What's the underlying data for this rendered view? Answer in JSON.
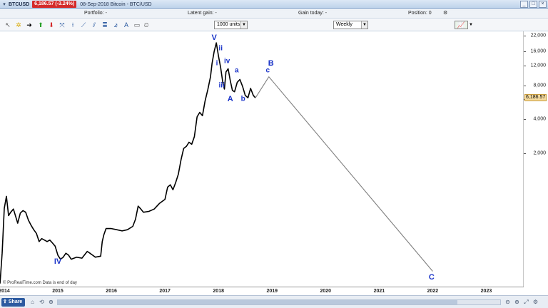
{
  "title_bar": {
    "symbol": "BTCUSD",
    "last_price": "6,186.57 (-3.24%)",
    "description": "08-Sep-2018 Bitcoin - BTC/USD",
    "window_buttons": [
      "_",
      "□",
      "×"
    ]
  },
  "info_bar": {
    "portfolio": "Portfolio: -",
    "latent_gain": "Latent gain: -",
    "gain_today": "Gain today: -",
    "position": "Position: 0"
  },
  "toolbar": {
    "quantity_value": "1000 units",
    "timeframe_value": "Weekly",
    "tools": [
      "cursor",
      "crosshair",
      "arrow",
      "buy",
      "sell",
      "cross",
      "trendline",
      "channel",
      "fibonacci",
      "text",
      "rectangle",
      "alert",
      "zoom"
    ]
  },
  "colors": {
    "price_line": "#000000",
    "projection_line": "#808080",
    "wave_label": "#1a33c8",
    "last_price_bg": "#d42a2a",
    "price_label_bg": "#f6dca0"
  },
  "chart_data": {
    "type": "line",
    "scale": "log",
    "xlabel": "",
    "ylabel": "",
    "x_ticks": [
      "2014",
      "2015",
      "2016",
      "2017",
      "2018",
      "2019",
      "2020",
      "2021",
      "2022",
      "2023"
    ],
    "y_ticks": [
      "22,000",
      "16,000",
      "12,000",
      "8,000",
      "6,000",
      "4,000",
      "2,000"
    ],
    "y_tick_values": [
      22000,
      16000,
      12000,
      8000,
      6000,
      4000,
      2000
    ],
    "ylim": [
      150,
      22000
    ],
    "xlim": [
      2013.92,
      2023.7
    ],
    "last_price_label": "6,186.57",
    "last_price_value": 6186.57,
    "series": [
      {
        "x": [
          2013.92,
          2013.96,
          2014.0,
          2014.04,
          2014.08,
          2014.12,
          2014.17,
          2014.25,
          2014.3,
          2014.35,
          2014.4,
          2014.45,
          2014.5,
          2014.55,
          2014.6,
          2014.65,
          2014.7,
          2014.75,
          2014.8,
          2014.85,
          2014.9,
          2014.95,
          2015.0,
          2015.05,
          2015.1,
          2015.15,
          2015.2,
          2015.25,
          2015.35,
          2015.45,
          2015.55,
          2015.6,
          2015.65,
          2015.7,
          2015.8,
          2015.83,
          2015.86,
          2015.9,
          2016.0,
          2016.1,
          2016.2,
          2016.3,
          2016.4,
          2016.45,
          2016.5,
          2016.55,
          2016.6,
          2016.7,
          2016.8,
          2016.9,
          2017.0,
          2017.05,
          2017.1,
          2017.15,
          2017.2,
          2017.25,
          2017.3,
          2017.35,
          2017.4,
          2017.45,
          2017.5,
          2017.55,
          2017.6,
          2017.65,
          2017.7,
          2017.75,
          2017.8,
          2017.85,
          2017.88,
          2017.92,
          2017.96,
          2018.0,
          2018.04,
          2018.08,
          2018.11,
          2018.14,
          2018.18,
          2018.22,
          2018.26,
          2018.3,
          2018.35,
          2018.4,
          2018.45,
          2018.5,
          2018.55,
          2018.6,
          2018.65,
          2018.69
        ],
        "values": [
          140,
          260,
          650,
          830,
          560,
          600,
          640,
          480,
          590,
          620,
          600,
          510,
          460,
          420,
          390,
          330,
          350,
          340,
          330,
          340,
          320,
          300,
          250,
          230,
          240,
          260,
          250,
          230,
          240,
          235,
          270,
          260,
          250,
          240,
          245,
          330,
          380,
          430,
          430,
          420,
          410,
          420,
          450,
          520,
          680,
          640,
          600,
          610,
          640,
          720,
          780,
          1000,
          1050,
          950,
          1100,
          1300,
          1750,
          2200,
          2300,
          2500,
          2400,
          2800,
          4200,
          4600,
          4300,
          5800,
          7300,
          9500,
          12500,
          16000,
          19000,
          14500,
          11500,
          8500,
          7400,
          10500,
          11200,
          8800,
          7200,
          7000,
          8500,
          9000,
          7800,
          6500,
          6200,
          7500,
          6500,
          6186
        ]
      },
      {
        "x": [
          2018.69,
          2018.94,
          2022.0
        ],
        "values": [
          6186,
          9500,
          180
        ]
      }
    ],
    "annotations": [
      {
        "text": "IV",
        "x": 2015.0,
        "y": 220
      },
      {
        "text": "V",
        "x": 2017.92,
        "y": 21000
      },
      {
        "text": "ii",
        "x": 2018.04,
        "y": 17000
      },
      {
        "text": "i",
        "x": 2017.97,
        "y": 12500
      },
      {
        "text": "iv",
        "x": 2018.16,
        "y": 13000
      },
      {
        "text": "iii",
        "x": 2018.06,
        "y": 7900
      },
      {
        "text": "a",
        "x": 2018.34,
        "y": 10800
      },
      {
        "text": "A",
        "x": 2018.22,
        "y": 6000
      },
      {
        "text": "b",
        "x": 2018.46,
        "y": 6000
      },
      {
        "text": "B",
        "x": 2018.98,
        "y": 12500
      },
      {
        "text": "c",
        "x": 2018.92,
        "y": 10800
      },
      {
        "text": "C",
        "x": 2021.98,
        "y": 160
      }
    ]
  },
  "footer": {
    "copyright": "© ProRealTime.com  Data is end of day",
    "share_label": "Share"
  }
}
